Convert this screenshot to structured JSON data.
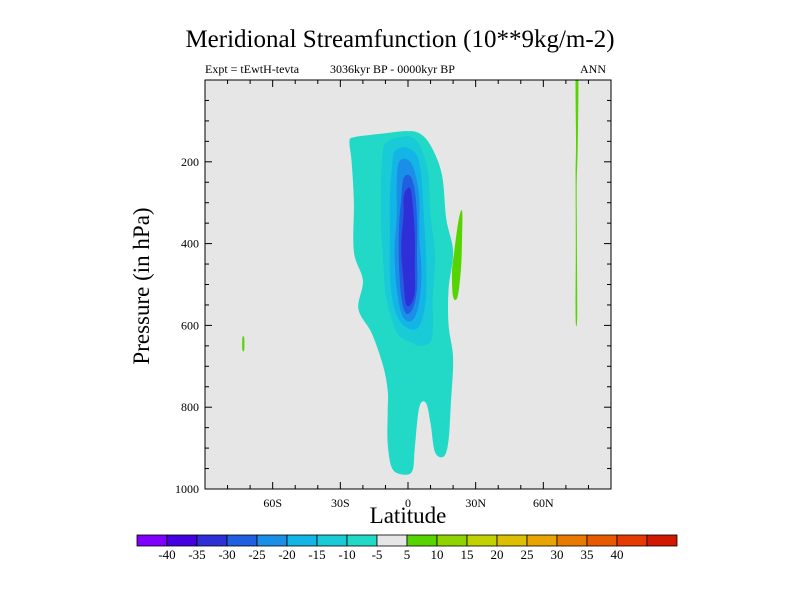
{
  "page": {
    "title": "Meridional Streamfunction (10**9kg/m-2)",
    "left_subtitle": "Expt = tEwtH-tevta",
    "center_subtitle": "3036kyr BP - 0000kyr BP",
    "right_subtitle": "ANN"
  },
  "colors": {
    "background": "#ffffff",
    "plot_area": "#e6e6e6",
    "levels": [
      "#7f00ff",
      "#4400e0",
      "#2f2fd8",
      "#1f5fe0",
      "#1b8fe8",
      "#12b5e6",
      "#18cbd6",
      "#22d9c8",
      "#e6e6e6",
      "#55d400",
      "#8fd400",
      "#c2d200",
      "#dcbf00",
      "#e8a400",
      "#e87a00",
      "#e85a00",
      "#e63a00",
      "#d21900"
    ]
  },
  "chart_data": {
    "type": "heatmap",
    "plot_kind": "filled contour (latitude-pressure cross section)",
    "title": "Meridional Streamfunction (10**9kg/m-2)",
    "xlabel": "Latitude",
    "ylabel": "Pressure (in hPa)",
    "xlim": [
      -90,
      90
    ],
    "ylim": [
      1000,
      0
    ],
    "x_ticks": [
      {
        "value": -60,
        "label": "60S"
      },
      {
        "value": -30,
        "label": "30S"
      },
      {
        "value": 0,
        "label": "0"
      },
      {
        "value": 30,
        "label": "30N"
      },
      {
        "value": 60,
        "label": "60N"
      }
    ],
    "y_ticks": [
      {
        "value": 200,
        "label": "200"
      },
      {
        "value": 400,
        "label": "400"
      },
      {
        "value": 600,
        "label": "600"
      },
      {
        "value": 800,
        "label": "800"
      },
      {
        "value": 1000,
        "label": "1000"
      }
    ],
    "colorbar": {
      "boundaries": [
        -40,
        -35,
        -30,
        -25,
        -20,
        -15,
        -10,
        -5,
        5,
        10,
        15,
        20,
        25,
        30,
        35,
        40
      ],
      "labels": [
        "-40",
        "-35",
        "-30",
        "-25",
        "-20",
        "-15",
        "-10",
        "-5",
        "5",
        "10",
        "15",
        "20",
        "25",
        "30",
        "35",
        "40"
      ]
    },
    "features": [
      {
        "name": "Main negative cell (outer, -10 to -5)",
        "color_index": 7,
        "points": [
          [
            -24,
            140
          ],
          [
            -18,
            135
          ],
          [
            -10,
            130
          ],
          [
            -1,
            125
          ],
          [
            5,
            130
          ],
          [
            10,
            160
          ],
          [
            15,
            230
          ],
          [
            17,
            340
          ],
          [
            20,
            420
          ],
          [
            18,
            510
          ],
          [
            18,
            600
          ],
          [
            20,
            680
          ],
          [
            19,
            790
          ],
          [
            18,
            880
          ],
          [
            16,
            920
          ],
          [
            12,
            910
          ],
          [
            10,
            840
          ],
          [
            8,
            790
          ],
          [
            5,
            800
          ],
          [
            3,
            900
          ],
          [
            2,
            955
          ],
          [
            -2,
            965
          ],
          [
            -7,
            950
          ],
          [
            -9,
            890
          ],
          [
            -9,
            810
          ],
          [
            -9,
            760
          ],
          [
            -11,
            700
          ],
          [
            -16,
            620
          ],
          [
            -22,
            560
          ],
          [
            -20,
            490
          ],
          [
            -24,
            420
          ],
          [
            -24,
            300
          ],
          [
            -25,
            200
          ],
          [
            -26,
            150
          ]
        ]
      },
      {
        "name": "Negative cell -15",
        "color_index": 6,
        "points": [
          [
            -9,
            150
          ],
          [
            -4,
            140
          ],
          [
            2,
            140
          ],
          [
            6,
            170
          ],
          [
            9,
            230
          ],
          [
            10,
            330
          ],
          [
            12,
            430
          ],
          [
            11,
            530
          ],
          [
            11,
            600
          ],
          [
            10,
            640
          ],
          [
            5,
            650
          ],
          [
            1,
            640
          ],
          [
            -4,
            625
          ],
          [
            -7,
            590
          ],
          [
            -10,
            520
          ],
          [
            -11,
            440
          ],
          [
            -12,
            350
          ],
          [
            -12,
            250
          ],
          [
            -11,
            170
          ]
        ]
      },
      {
        "name": "Negative cell -20",
        "color_index": 5,
        "points": [
          [
            -6,
            175
          ],
          [
            -1,
            165
          ],
          [
            4,
            185
          ],
          [
            6,
            240
          ],
          [
            7,
            330
          ],
          [
            8,
            430
          ],
          [
            8,
            530
          ],
          [
            6,
            590
          ],
          [
            3,
            610
          ],
          [
            -2,
            600
          ],
          [
            -6,
            560
          ],
          [
            -8,
            480
          ],
          [
            -8,
            380
          ],
          [
            -8,
            280
          ],
          [
            -7,
            210
          ]
        ]
      },
      {
        "name": "Negative cell -25",
        "color_index": 4,
        "points": [
          [
            -4,
            200
          ],
          [
            0,
            195
          ],
          [
            3,
            225
          ],
          [
            5,
            290
          ],
          [
            5,
            380
          ],
          [
            6,
            470
          ],
          [
            5,
            540
          ],
          [
            3,
            580
          ],
          [
            0,
            590
          ],
          [
            -3,
            570
          ],
          [
            -5,
            510
          ],
          [
            -6,
            420
          ],
          [
            -5,
            330
          ],
          [
            -5,
            250
          ]
        ]
      },
      {
        "name": "Negative cell -30",
        "color_index": 3,
        "points": [
          [
            -2,
            240
          ],
          [
            1,
            235
          ],
          [
            3,
            270
          ],
          [
            4,
            340
          ],
          [
            4,
            430
          ],
          [
            4,
            510
          ],
          [
            2,
            560
          ],
          [
            -1,
            570
          ],
          [
            -3,
            530
          ],
          [
            -4,
            450
          ],
          [
            -4,
            360
          ],
          [
            -3,
            290
          ]
        ]
      },
      {
        "name": "Negative core -35",
        "color_index": 2,
        "points": [
          [
            -1,
            270
          ],
          [
            1,
            265
          ],
          [
            2,
            300
          ],
          [
            3,
            380
          ],
          [
            3,
            460
          ],
          [
            3,
            520
          ],
          [
            1,
            550
          ],
          [
            -1,
            545
          ],
          [
            -2,
            490
          ],
          [
            -3,
            410
          ],
          [
            -2,
            330
          ],
          [
            -2,
            290
          ]
        ]
      },
      {
        "name": "Positive band near 20N",
        "color_index": 9,
        "points": [
          [
            22.5,
            340
          ],
          [
            24,
            320
          ],
          [
            24,
            380
          ],
          [
            23.5,
            460
          ],
          [
            22,
            530
          ],
          [
            20,
            530
          ],
          [
            19.5,
            470
          ],
          [
            20.5,
            420
          ]
        ]
      },
      {
        "name": "Positive strip near 75N",
        "color_index": 9,
        "points": [
          [
            74.3,
            -20
          ],
          [
            75.5,
            -20
          ],
          [
            75.3,
            150
          ],
          [
            74.8,
            260
          ],
          [
            74.9,
            400
          ],
          [
            75,
            580
          ],
          [
            74.3,
            580
          ],
          [
            74.4,
            400
          ],
          [
            74.3,
            240
          ],
          [
            74.5,
            150
          ]
        ]
      },
      {
        "name": "Positive speck near 73S",
        "color_index": 9,
        "points": [
          [
            -73.4,
            630
          ],
          [
            -72.6,
            630
          ],
          [
            -72.6,
            660
          ],
          [
            -73.4,
            660
          ]
        ]
      }
    ]
  }
}
